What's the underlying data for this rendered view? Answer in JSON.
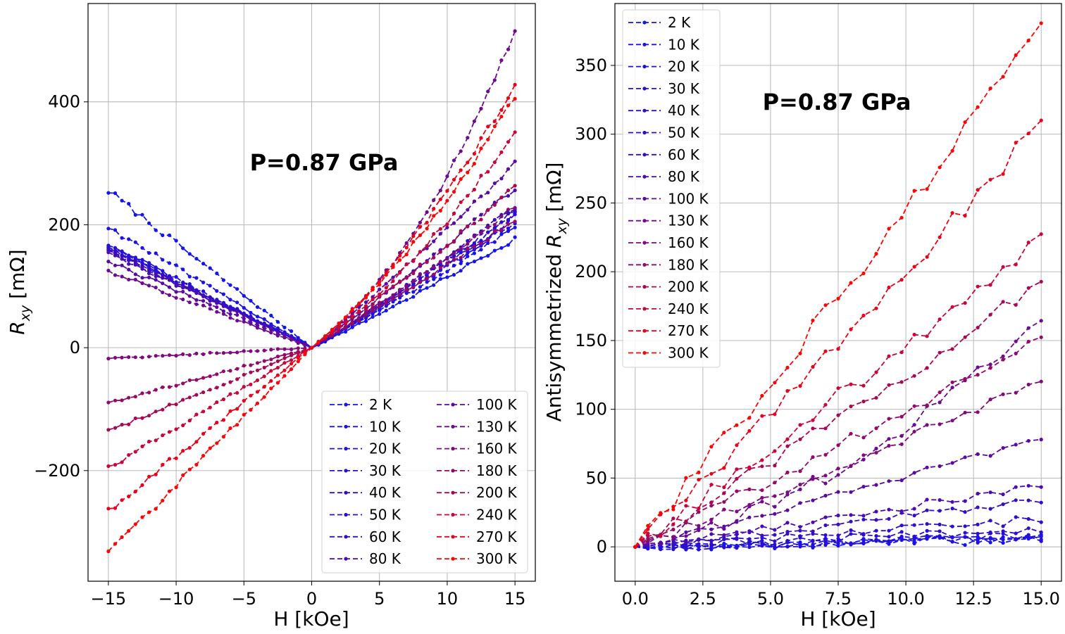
{
  "chart_data": [
    {
      "type": "line",
      "panel": "left",
      "annotation": "P=0.87 GPa",
      "xlabel": "H [kOe]",
      "ylabel_main": "R",
      "ylabel_sub": "xy",
      "ylabel_unit": " [mΩ]",
      "xlim": [
        -16.5,
        16.5
      ],
      "ylim": [
        -380,
        560
      ],
      "xticks": [
        -15,
        -10,
        -5,
        0,
        5,
        10,
        15
      ],
      "xtick_labels": [
        "−15",
        "−10",
        "−5",
        "0",
        "5",
        "10",
        "15"
      ],
      "yticks": [
        -200,
        0,
        200,
        400
      ],
      "ytick_labels": [
        "−200",
        "0",
        "200",
        "400"
      ],
      "grid": true,
      "legend_placement": "lower-right",
      "legend_columns": 2,
      "series": [
        {
          "name": "2 K",
          "color": "#1414ee",
          "left": 255,
          "right": 178
        },
        {
          "name": "10 K",
          "color": "#1a12e8",
          "left": 196,
          "right": 196
        },
        {
          "name": "20 K",
          "color": "#2010e0",
          "left": 168,
          "right": 205
        },
        {
          "name": "30 K",
          "color": "#260fd8",
          "left": 165,
          "right": 212
        },
        {
          "name": "40 K",
          "color": "#2c0ed0",
          "left": 162,
          "right": 218
        },
        {
          "name": "50 K",
          "color": "#320dc8",
          "left": 160,
          "right": 222
        },
        {
          "name": "60 K",
          "color": "#380cc0",
          "left": 158,
          "right": 228
        },
        {
          "name": "80 K",
          "color": "#4a0cb0",
          "left": 155,
          "right": 262
        },
        {
          "name": "100 K",
          "color": "#5a0aa0",
          "left": 140,
          "right": 300
        },
        {
          "name": "130 K",
          "color": "#6c0a90",
          "left": 125,
          "right": 515
        },
        {
          "name": "160 K",
          "color": "#80097c",
          "left": -18,
          "right": 230
        },
        {
          "name": "180 K",
          "color": "#930868",
          "left": -90,
          "right": 210
        },
        {
          "name": "200 K",
          "color": "#a60854",
          "left": -135,
          "right": 260
        },
        {
          "name": "240 K",
          "color": "#c9063a",
          "left": -195,
          "right": 350
        },
        {
          "name": "270 K",
          "color": "#e6041c",
          "left": -265,
          "right": 430
        },
        {
          "name": "300 K",
          "color": "#fa0606",
          "left": -335,
          "right": 410
        }
      ]
    },
    {
      "type": "line",
      "panel": "right",
      "annotation": "P=0.87 GPa",
      "xlabel": "H [kOe]",
      "ylabel_prefix": "Antisymmetrized ",
      "ylabel_main": "R",
      "ylabel_sub": "xy",
      "ylabel_unit": " [mΩ]",
      "xlim": [
        -0.75,
        15.75
      ],
      "ylim": [
        -25,
        395
      ],
      "xticks": [
        0,
        2.5,
        5,
        7.5,
        10,
        12.5,
        15
      ],
      "xtick_labels": [
        "0.0",
        "2.5",
        "5.0",
        "7.5",
        "10.0",
        "12.5",
        "15.0"
      ],
      "yticks": [
        0,
        50,
        100,
        150,
        200,
        250,
        300,
        350
      ],
      "ytick_labels": [
        "0",
        "50",
        "100",
        "150",
        "200",
        "250",
        "300",
        "350"
      ],
      "grid": true,
      "legend_placement": "upper-left",
      "legend_columns": 1,
      "series": [
        {
          "name": "2 K",
          "color": "#1414ee",
          "end": 5
        },
        {
          "name": "10 K",
          "color": "#1a12e8",
          "end": 6
        },
        {
          "name": "20 K",
          "color": "#2010e0",
          "end": 7
        },
        {
          "name": "30 K",
          "color": "#260fd8",
          "end": 8
        },
        {
          "name": "40 K",
          "color": "#2c0ed0",
          "end": 13
        },
        {
          "name": "50 K",
          "color": "#320dc8",
          "end": 20
        },
        {
          "name": "60 K",
          "color": "#380cc0",
          "end": 34
        },
        {
          "name": "80 K",
          "color": "#4a0cb0",
          "end": 45
        },
        {
          "name": "100 K",
          "color": "#5a0aa0",
          "end": 79
        },
        {
          "name": "130 K",
          "color": "#6c0a90",
          "end": 166
        },
        {
          "name": "160 K",
          "color": "#80097c",
          "end": 121
        },
        {
          "name": "180 K",
          "color": "#930868",
          "end": 153
        },
        {
          "name": "200 K",
          "color": "#a60854",
          "end": 193
        },
        {
          "name": "240 K",
          "color": "#c9063a",
          "end": 227
        },
        {
          "name": "270 K",
          "color": "#e6041c",
          "end": 309
        },
        {
          "name": "300 K",
          "color": "#fa0606",
          "end": 379
        }
      ]
    }
  ]
}
